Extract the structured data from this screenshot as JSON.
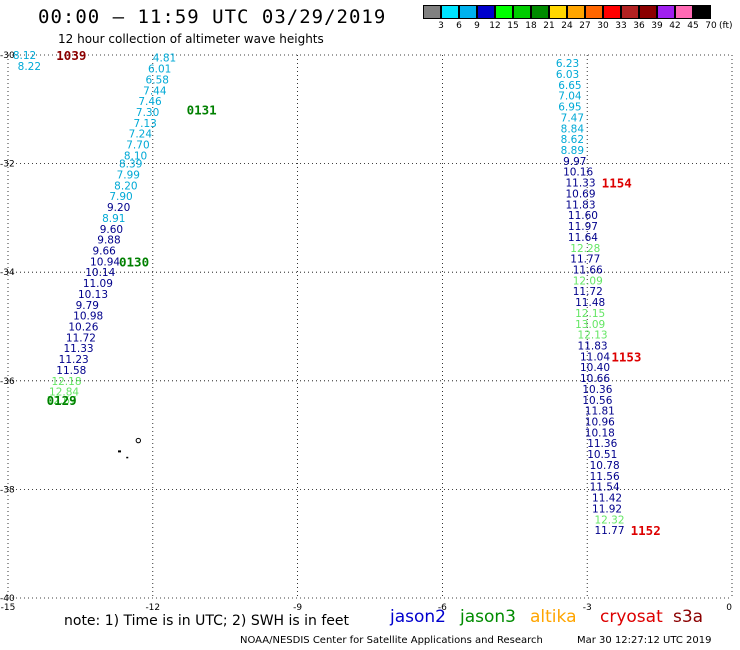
{
  "title": {
    "time_range": "00:00 – 11:59 UTC",
    "date": "03/29/2019"
  },
  "subtitle": "12 hour collection of altimeter wave heights",
  "colorbar": {
    "labels": [
      "3",
      "6",
      "9",
      "12",
      "15",
      "18",
      "21",
      "24",
      "27",
      "30",
      "33",
      "36",
      "39",
      "42",
      "45",
      "70"
    ],
    "unit": "(ft)",
    "colors": [
      "#808080",
      "#00e5ff",
      "#00b2ee",
      "#0000cd",
      "#00ff00",
      "#00cd00",
      "#008b00",
      "#ffd700",
      "#ffa500",
      "#ff6600",
      "#ff0000",
      "#b22222",
      "#8b0000",
      "#a020f0",
      "#ff69b4",
      "#000000"
    ]
  },
  "axes": {
    "y_ticks": [
      "-30",
      "-32",
      "-34",
      "-36",
      "-38",
      "-40"
    ],
    "x_ticks": [
      "-15",
      "-12",
      "-9",
      "-6",
      "-3",
      "0"
    ],
    "lat_range": [
      -40,
      -30
    ],
    "lon_range": [
      -15,
      0
    ]
  },
  "colors": {
    "cyan": "#00a9d6",
    "navy": "#00008b",
    "green": "#64e664",
    "dark_green": "#008000",
    "dark_red": "#8b0000",
    "red": "#dd0000",
    "orange": "#ffa500",
    "grey_islands": "#000000"
  },
  "tracks": {
    "left_extra": [
      {
        "text": "8.12",
        "lon": -14.9,
        "lat": -30.0,
        "color": "cyan"
      },
      {
        "text": "8.22",
        "lon": -14.8,
        "lat": -30.2,
        "color": "cyan"
      }
    ],
    "left": [
      {
        "text": "4.81",
        "lon": -12.0,
        "lat": -30.05,
        "color": "cyan"
      },
      {
        "text": "6.01",
        "lon": -12.1,
        "lat": -30.25,
        "color": "cyan"
      },
      {
        "text": "6.58",
        "lon": -12.15,
        "lat": -30.45,
        "color": "cyan"
      },
      {
        "text": "7.44",
        "lon": -12.2,
        "lat": -30.65,
        "color": "cyan"
      },
      {
        "text": "7.46",
        "lon": -12.3,
        "lat": -30.85,
        "color": "cyan"
      },
      {
        "text": "7.30",
        "lon": -12.35,
        "lat": -31.05,
        "color": "cyan"
      },
      {
        "text": "7.13",
        "lon": -12.4,
        "lat": -31.25,
        "color": "cyan"
      },
      {
        "text": "7.24",
        "lon": -12.5,
        "lat": -31.45,
        "color": "cyan"
      },
      {
        "text": "7.70",
        "lon": -12.55,
        "lat": -31.65,
        "color": "cyan"
      },
      {
        "text": "8.10",
        "lon": -12.6,
        "lat": -31.85,
        "color": "cyan"
      },
      {
        "text": "8.39",
        "lon": -12.7,
        "lat": -32.0,
        "color": "cyan"
      },
      {
        "text": "7.99",
        "lon": -12.75,
        "lat": -32.2,
        "color": "cyan"
      },
      {
        "text": "8.20",
        "lon": -12.8,
        "lat": -32.4,
        "color": "cyan"
      },
      {
        "text": "7.90",
        "lon": -12.9,
        "lat": -32.6,
        "color": "cyan"
      },
      {
        "text": "9.20",
        "lon": -12.95,
        "lat": -32.8,
        "color": "navy"
      },
      {
        "text": "8.91",
        "lon": -13.05,
        "lat": -33.0,
        "color": "cyan"
      },
      {
        "text": "9.60",
        "lon": -13.1,
        "lat": -33.2,
        "color": "navy"
      },
      {
        "text": "9.88",
        "lon": -13.15,
        "lat": -33.4,
        "color": "navy"
      },
      {
        "text": "9.66",
        "lon": -13.25,
        "lat": -33.6,
        "color": "navy"
      },
      {
        "text": "10.94",
        "lon": -13.3,
        "lat": -33.8,
        "color": "navy"
      },
      {
        "text": "10.14",
        "lon": -13.4,
        "lat": -34.0,
        "color": "navy"
      },
      {
        "text": "11.09",
        "lon": -13.45,
        "lat": -34.2,
        "color": "navy"
      },
      {
        "text": "10.13",
        "lon": -13.55,
        "lat": -34.4,
        "color": "navy"
      },
      {
        "text": "9.79",
        "lon": -13.6,
        "lat": -34.6,
        "color": "navy"
      },
      {
        "text": "10.98",
        "lon": -13.65,
        "lat": -34.8,
        "color": "navy"
      },
      {
        "text": "10.26",
        "lon": -13.75,
        "lat": -35.0,
        "color": "navy"
      },
      {
        "text": "11.72",
        "lon": -13.8,
        "lat": -35.2,
        "color": "navy"
      },
      {
        "text": "11.33",
        "lon": -13.85,
        "lat": -35.4,
        "color": "navy"
      },
      {
        "text": "11.23",
        "lon": -13.95,
        "lat": -35.6,
        "color": "navy"
      },
      {
        "text": "11.58",
        "lon": -14.0,
        "lat": -35.8,
        "color": "navy"
      },
      {
        "text": "12.18",
        "lon": -14.1,
        "lat": -36.0,
        "color": "green"
      },
      {
        "text": "12.84",
        "lon": -14.15,
        "lat": -36.2,
        "color": "green"
      },
      {
        "text": "12.67",
        "lon": -14.2,
        "lat": -36.35,
        "color": "green"
      }
    ],
    "right": [
      {
        "text": "6.23",
        "lon": -3.65,
        "lat": -30.15,
        "color": "cyan"
      },
      {
        "text": "6.03",
        "lon": -3.65,
        "lat": -30.35,
        "color": "cyan"
      },
      {
        "text": "6.65",
        "lon": -3.6,
        "lat": -30.55,
        "color": "cyan"
      },
      {
        "text": "7.04",
        "lon": -3.6,
        "lat": -30.75,
        "color": "cyan"
      },
      {
        "text": "6.95",
        "lon": -3.6,
        "lat": -30.95,
        "color": "cyan"
      },
      {
        "text": "7.47",
        "lon": -3.55,
        "lat": -31.15,
        "color": "cyan"
      },
      {
        "text": "8.84",
        "lon": -3.55,
        "lat": -31.35,
        "color": "cyan"
      },
      {
        "text": "8.62",
        "lon": -3.55,
        "lat": -31.55,
        "color": "cyan"
      },
      {
        "text": "8.89",
        "lon": -3.55,
        "lat": -31.75,
        "color": "cyan"
      },
      {
        "text": "9.97",
        "lon": -3.5,
        "lat": -31.95,
        "color": "navy"
      },
      {
        "text": "10.16",
        "lon": -3.5,
        "lat": -32.15,
        "color": "navy"
      },
      {
        "text": "11.33",
        "lon": -3.45,
        "lat": -32.35,
        "color": "navy"
      },
      {
        "text": "10.69",
        "lon": -3.45,
        "lat": -32.55,
        "color": "navy"
      },
      {
        "text": "11.83",
        "lon": -3.45,
        "lat": -32.75,
        "color": "navy"
      },
      {
        "text": "11.60",
        "lon": -3.4,
        "lat": -32.95,
        "color": "navy"
      },
      {
        "text": "11.97",
        "lon": -3.4,
        "lat": -33.15,
        "color": "navy"
      },
      {
        "text": "11.64",
        "lon": -3.4,
        "lat": -33.35,
        "color": "navy"
      },
      {
        "text": "12.28",
        "lon": -3.35,
        "lat": -33.55,
        "color": "green"
      },
      {
        "text": "11.77",
        "lon": -3.35,
        "lat": -33.75,
        "color": "navy"
      },
      {
        "text": "11.66",
        "lon": -3.3,
        "lat": -33.95,
        "color": "navy"
      },
      {
        "text": "12.09",
        "lon": -3.3,
        "lat": -34.15,
        "color": "green"
      },
      {
        "text": "11.72",
        "lon": -3.3,
        "lat": -34.35,
        "color": "navy"
      },
      {
        "text": "11.48",
        "lon": -3.25,
        "lat": -34.55,
        "color": "navy"
      },
      {
        "text": "12.15",
        "lon": -3.25,
        "lat": -34.75,
        "color": "green"
      },
      {
        "text": "13.09",
        "lon": -3.25,
        "lat": -34.95,
        "color": "green"
      },
      {
        "text": "12.13",
        "lon": -3.2,
        "lat": -35.15,
        "color": "green"
      },
      {
        "text": "11.83",
        "lon": -3.2,
        "lat": -35.35,
        "color": "navy"
      },
      {
        "text": "11.04",
        "lon": -3.15,
        "lat": -35.55,
        "color": "navy"
      },
      {
        "text": "10.40",
        "lon": -3.15,
        "lat": -35.75,
        "color": "navy"
      },
      {
        "text": "10.66",
        "lon": -3.15,
        "lat": -35.95,
        "color": "navy"
      },
      {
        "text": "10.36",
        "lon": -3.1,
        "lat": -36.15,
        "color": "navy"
      },
      {
        "text": "10.56",
        "lon": -3.1,
        "lat": -36.35,
        "color": "navy"
      },
      {
        "text": "11.81",
        "lon": -3.05,
        "lat": -36.55,
        "color": "navy"
      },
      {
        "text": "10.96",
        "lon": -3.05,
        "lat": -36.75,
        "color": "navy"
      },
      {
        "text": "10.18",
        "lon": -3.05,
        "lat": -36.95,
        "color": "navy"
      },
      {
        "text": "11.36",
        "lon": -3.0,
        "lat": -37.15,
        "color": "navy"
      },
      {
        "text": "10.51",
        "lon": -3.0,
        "lat": -37.35,
        "color": "navy"
      },
      {
        "text": "10.78",
        "lon": -2.95,
        "lat": -37.55,
        "color": "navy"
      },
      {
        "text": "11.56",
        "lon": -2.95,
        "lat": -37.75,
        "color": "navy"
      },
      {
        "text": "11.54",
        "lon": -2.95,
        "lat": -37.95,
        "color": "navy"
      },
      {
        "text": "11.42",
        "lon": -2.9,
        "lat": -38.15,
        "color": "navy"
      },
      {
        "text": "11.92",
        "lon": -2.9,
        "lat": -38.35,
        "color": "navy"
      },
      {
        "text": "12.32",
        "lon": -2.85,
        "lat": -38.55,
        "color": "green"
      },
      {
        "text": "11.77",
        "lon": -2.85,
        "lat": -38.75,
        "color": "navy"
      }
    ]
  },
  "time_labels": [
    {
      "text": "1039",
      "lon": -14.0,
      "lat": -30.0,
      "color": "dark_red"
    },
    {
      "text": "0131",
      "lon": -11.3,
      "lat": -31.0,
      "color": "dark_green"
    },
    {
      "text": "1154",
      "lon": -2.7,
      "lat": -32.35,
      "color": "red"
    },
    {
      "text": "0130",
      "lon": -12.7,
      "lat": -33.8,
      "color": "dark_green"
    },
    {
      "text": "0129",
      "lon": -14.2,
      "lat": -36.35,
      "color": "dark_green"
    },
    {
      "text": "1153",
      "lon": -2.5,
      "lat": -35.55,
      "color": "red"
    },
    {
      "text": "1152",
      "lon": -2.1,
      "lat": -38.75,
      "color": "red"
    }
  ],
  "note": "note:  1) Time is in UTC;  2) SWH is in feet",
  "legend": [
    {
      "label": "jason2",
      "color": "#0000cd"
    },
    {
      "label": "jason3",
      "color": "#008b00"
    },
    {
      "label": "altika",
      "color": "#ffa500"
    },
    {
      "label": "cryosat",
      "color": "#dd0000"
    },
    {
      "label": "s3a",
      "color": "#8b0000"
    }
  ],
  "footer": {
    "credit": "NOAA/NESDIS Center for Satellite Applications and Research",
    "generated": "Mar 30 12:27:12 UTC 2019"
  }
}
